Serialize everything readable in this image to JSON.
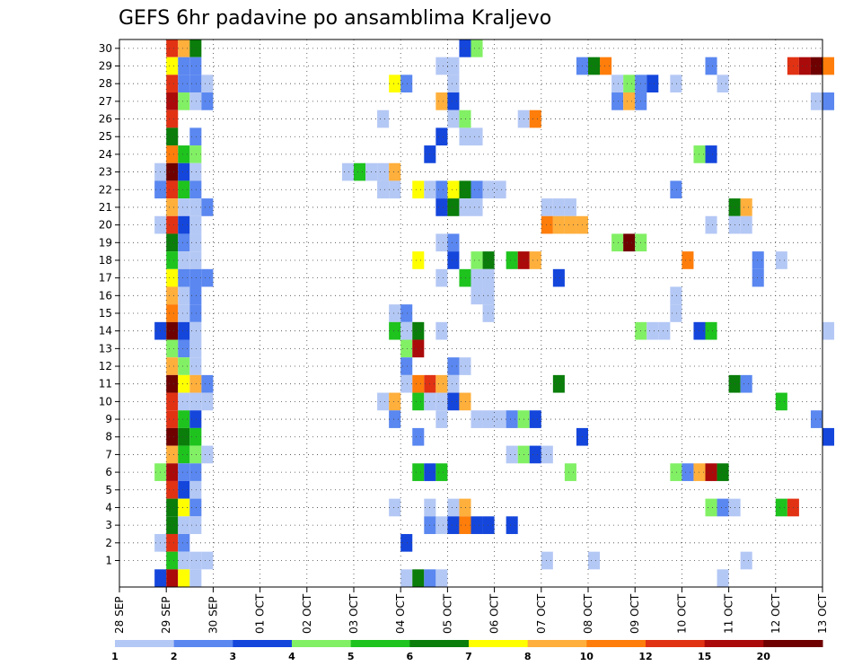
{
  "chart_data": {
    "type": "heatmap",
    "title": "GEFS 6hr padavine po ansamblima Kraljevo",
    "xlabel": "",
    "ylabel": "",
    "x_range": [
      "2019-09-28 00:00",
      "2019-10-13 00:00"
    ],
    "x_ticks": [
      "28 SEP",
      "29 SEP",
      "30 SEP",
      "01 OCT",
      "02 OCT",
      "03 OCT",
      "04 OCT",
      "05 OCT",
      "06 OCT",
      "07 OCT",
      "08 OCT",
      "09 OCT",
      "10 OCT",
      "11 OCT",
      "12 OCT",
      "13 OCT"
    ],
    "y_ticks": [
      1,
      2,
      3,
      4,
      5,
      6,
      7,
      8,
      9,
      10,
      11,
      12,
      13,
      14,
      15,
      16,
      17,
      18,
      19,
      20,
      21,
      22,
      23,
      24,
      25,
      26,
      27,
      28,
      29,
      30
    ],
    "y_range": [
      0,
      30
    ],
    "time_step_hours": 6,
    "grid": true,
    "colorbar": {
      "position": "bottom",
      "labels": [
        "1",
        "2",
        "3",
        "4",
        "5",
        "6",
        "7",
        "8",
        "10",
        "12",
        "15",
        "20"
      ],
      "colors": [
        "#b4c8f5",
        "#5a87f0",
        "#1446dc",
        "#82f064",
        "#1ec31e",
        "#0a7d0a",
        "#ffff00",
        "#ffaf3c",
        "#ff7d0a",
        "#e13214",
        "#aa0a0a",
        "#6e0000"
      ]
    },
    "cells_format": [
      "member",
      "valid_time",
      "color_index"
    ],
    "cells": [
      [
        30,
        "09-29 00",
        9
      ],
      [
        30,
        "09-29 06",
        7
      ],
      [
        30,
        "09-29 12",
        5
      ],
      [
        30,
        "10-05 06",
        2
      ],
      [
        30,
        "10-05 12",
        3
      ],
      [
        29,
        "09-29 00",
        6
      ],
      [
        29,
        "09-29 06",
        1
      ],
      [
        29,
        "09-29 12",
        1
      ],
      [
        29,
        "10-04 18",
        0
      ],
      [
        29,
        "10-05 00",
        0
      ],
      [
        29,
        "10-07 18",
        1
      ],
      [
        29,
        "10-08 00",
        5
      ],
      [
        29,
        "10-08 06",
        8
      ],
      [
        29,
        "10-10 12",
        1
      ],
      [
        29,
        "10-12 06",
        9
      ],
      [
        29,
        "10-12 12",
        10
      ],
      [
        29,
        "10-12 18",
        11
      ],
      [
        29,
        "10-13 00",
        8
      ],
      [
        28,
        "09-29 00",
        9
      ],
      [
        28,
        "09-29 06",
        1
      ],
      [
        28,
        "09-29 12",
        1
      ],
      [
        28,
        "09-29 18",
        0
      ],
      [
        28,
        "10-03 18",
        6
      ],
      [
        28,
        "10-04 00",
        1
      ],
      [
        28,
        "10-05 00",
        0
      ],
      [
        28,
        "10-08 12",
        0
      ],
      [
        28,
        "10-08 18",
        3
      ],
      [
        28,
        "10-09 00",
        1
      ],
      [
        28,
        "10-09 06",
        2
      ],
      [
        28,
        "10-09 18",
        0
      ],
      [
        28,
        "10-10 18",
        0
      ],
      [
        27,
        "09-29 00",
        10
      ],
      [
        27,
        "09-29 06",
        3
      ],
      [
        27,
        "09-29 12",
        0
      ],
      [
        27,
        "09-29 18",
        1
      ],
      [
        27,
        "10-04 18",
        7
      ],
      [
        27,
        "10-05 00",
        2
      ],
      [
        27,
        "10-08 12",
        1
      ],
      [
        27,
        "10-08 18",
        7
      ],
      [
        27,
        "10-09 00",
        1
      ],
      [
        27,
        "10-12 18",
        0
      ],
      [
        27,
        "10-13 00",
        1
      ],
      [
        26,
        "09-29 00",
        9
      ],
      [
        26,
        "10-03 12",
        0
      ],
      [
        26,
        "10-05 00",
        0
      ],
      [
        26,
        "10-05 06",
        3
      ],
      [
        26,
        "10-06 12",
        0
      ],
      [
        26,
        "10-06 18",
        8
      ],
      [
        25,
        "09-29 00",
        5
      ],
      [
        25,
        "09-29 12",
        1
      ],
      [
        25,
        "10-04 18",
        2
      ],
      [
        25,
        "10-05 06",
        0
      ],
      [
        25,
        "10-05 12",
        0
      ],
      [
        24,
        "09-29 00",
        8
      ],
      [
        24,
        "09-29 06",
        4
      ],
      [
        24,
        "09-29 12",
        3
      ],
      [
        24,
        "10-04 12",
        2
      ],
      [
        24,
        "10-10 06",
        3
      ],
      [
        24,
        "10-10 12",
        2
      ],
      [
        23,
        "09-28 18",
        0
      ],
      [
        23,
        "09-29 00",
        11
      ],
      [
        23,
        "09-29 06",
        2
      ],
      [
        23,
        "09-29 12",
        0
      ],
      [
        23,
        "10-02 18",
        0
      ],
      [
        23,
        "10-03 00",
        4
      ],
      [
        23,
        "10-03 06",
        0
      ],
      [
        23,
        "10-03 12",
        0
      ],
      [
        23,
        "10-03 18",
        7
      ],
      [
        22,
        "09-28 18",
        1
      ],
      [
        22,
        "09-29 00",
        9
      ],
      [
        22,
        "09-29 06",
        4
      ],
      [
        22,
        "09-29 12",
        1
      ],
      [
        22,
        "10-03 12",
        0
      ],
      [
        22,
        "10-03 18",
        0
      ],
      [
        22,
        "10-04 06",
        6
      ],
      [
        22,
        "10-04 12",
        0
      ],
      [
        22,
        "10-04 18",
        1
      ],
      [
        22,
        "10-05 00",
        6
      ],
      [
        22,
        "10-05 06",
        5
      ],
      [
        22,
        "10-05 12",
        1
      ],
      [
        22,
        "10-05 18",
        0
      ],
      [
        22,
        "10-06 00",
        0
      ],
      [
        22,
        "10-09 18",
        1
      ],
      [
        21,
        "09-29 00",
        7
      ],
      [
        21,
        "09-29 06",
        0
      ],
      [
        21,
        "09-29 12",
        0
      ],
      [
        21,
        "09-29 18",
        1
      ],
      [
        21,
        "10-04 18",
        2
      ],
      [
        21,
        "10-05 00",
        5
      ],
      [
        21,
        "10-05 06",
        0
      ],
      [
        21,
        "10-05 12",
        0
      ],
      [
        21,
        "10-07 00",
        0
      ],
      [
        21,
        "10-07 06",
        0
      ],
      [
        21,
        "10-07 12",
        0
      ],
      [
        21,
        "10-11 00",
        5
      ],
      [
        21,
        "10-11 06",
        7
      ],
      [
        20,
        "09-28 18",
        0
      ],
      [
        20,
        "09-29 00",
        9
      ],
      [
        20,
        "09-29 06",
        2
      ],
      [
        20,
        "09-29 12",
        0
      ],
      [
        20,
        "10-07 00",
        8
      ],
      [
        20,
        "10-07 06",
        7
      ],
      [
        20,
        "10-07 12",
        7
      ],
      [
        20,
        "10-07 18",
        7
      ],
      [
        20,
        "10-10 12",
        0
      ],
      [
        20,
        "10-11 00",
        0
      ],
      [
        20,
        "10-11 06",
        0
      ],
      [
        19,
        "09-29 00",
        5
      ],
      [
        19,
        "09-29 06",
        1
      ],
      [
        19,
        "09-29 12",
        0
      ],
      [
        19,
        "10-04 18",
        0
      ],
      [
        19,
        "10-05 00",
        1
      ],
      [
        19,
        "10-08 12",
        3
      ],
      [
        19,
        "10-08 18",
        11
      ],
      [
        19,
        "10-09 00",
        3
      ],
      [
        18,
        "09-29 00",
        4
      ],
      [
        18,
        "09-29 06",
        0
      ],
      [
        18,
        "09-29 12",
        0
      ],
      [
        18,
        "10-04 06",
        6
      ],
      [
        18,
        "10-05 00",
        2
      ],
      [
        18,
        "10-05 12",
        3
      ],
      [
        18,
        "10-05 18",
        5
      ],
      [
        18,
        "10-06 06",
        4
      ],
      [
        18,
        "10-06 12",
        10
      ],
      [
        18,
        "10-06 18",
        7
      ],
      [
        18,
        "10-10 00",
        8
      ],
      [
        18,
        "10-11 12",
        1
      ],
      [
        18,
        "10-12 00",
        0
      ],
      [
        17,
        "09-29 00",
        6
      ],
      [
        17,
        "09-29 06",
        1
      ],
      [
        17,
        "09-29 12",
        1
      ],
      [
        17,
        "09-29 18",
        1
      ],
      [
        17,
        "10-04 18",
        0
      ],
      [
        17,
        "10-05 06",
        4
      ],
      [
        17,
        "10-05 12",
        0
      ],
      [
        17,
        "10-05 18",
        0
      ],
      [
        17,
        "10-07 06",
        2
      ],
      [
        17,
        "10-11 12",
        1
      ],
      [
        16,
        "09-29 00",
        7
      ],
      [
        16,
        "09-29 06",
        0
      ],
      [
        16,
        "09-29 12",
        1
      ],
      [
        16,
        "10-05 12",
        0
      ],
      [
        16,
        "10-05 18",
        0
      ],
      [
        16,
        "10-09 18",
        0
      ],
      [
        15,
        "09-29 00",
        8
      ],
      [
        15,
        "09-29 06",
        0
      ],
      [
        15,
        "09-29 12",
        1
      ],
      [
        15,
        "10-03 18",
        0
      ],
      [
        15,
        "10-04 00",
        1
      ],
      [
        15,
        "10-05 18",
        0
      ],
      [
        15,
        "10-09 18",
        0
      ],
      [
        14,
        "09-28 18",
        2
      ],
      [
        14,
        "09-29 00",
        11
      ],
      [
        14,
        "09-29 06",
        2
      ],
      [
        14,
        "09-29 12",
        0
      ],
      [
        14,
        "10-03 18",
        4
      ],
      [
        14,
        "10-04 00",
        0
      ],
      [
        14,
        "10-04 06",
        5
      ],
      [
        14,
        "10-04 18",
        0
      ],
      [
        14,
        "10-09 00",
        3
      ],
      [
        14,
        "10-09 06",
        0
      ],
      [
        14,
        "10-09 12",
        0
      ],
      [
        14,
        "10-10 06",
        2
      ],
      [
        14,
        "10-10 12",
        4
      ],
      [
        14,
        "10-13 00",
        0
      ],
      [
        13,
        "09-29 00",
        3
      ],
      [
        13,
        "09-29 06",
        1
      ],
      [
        13,
        "09-29 12",
        0
      ],
      [
        13,
        "10-04 00",
        3
      ],
      [
        13,
        "10-04 06",
        10
      ],
      [
        12,
        "09-29 00",
        7
      ],
      [
        12,
        "09-29 06",
        3
      ],
      [
        12,
        "09-29 12",
        0
      ],
      [
        12,
        "10-04 00",
        1
      ],
      [
        12,
        "10-05 00",
        1
      ],
      [
        12,
        "10-05 06",
        0
      ],
      [
        11,
        "09-29 00",
        11
      ],
      [
        11,
        "09-29 06",
        6
      ],
      [
        11,
        "09-29 12",
        7
      ],
      [
        11,
        "09-29 18",
        1
      ],
      [
        11,
        "10-04 00",
        0
      ],
      [
        11,
        "10-04 06",
        8
      ],
      [
        11,
        "10-04 12",
        9
      ],
      [
        11,
        "10-04 18",
        7
      ],
      [
        11,
        "10-05 00",
        0
      ],
      [
        11,
        "10-07 06",
        5
      ],
      [
        11,
        "10-11 00",
        5
      ],
      [
        11,
        "10-11 06",
        1
      ],
      [
        10,
        "09-29 00",
        9
      ],
      [
        10,
        "09-29 06",
        0
      ],
      [
        10,
        "09-29 12",
        0
      ],
      [
        10,
        "09-29 18",
        0
      ],
      [
        10,
        "10-03 12",
        0
      ],
      [
        10,
        "10-03 18",
        7
      ],
      [
        10,
        "10-04 06",
        4
      ],
      [
        10,
        "10-04 12",
        0
      ],
      [
        10,
        "10-04 18",
        0
      ],
      [
        10,
        "10-05 00",
        2
      ],
      [
        10,
        "10-05 06",
        7
      ],
      [
        10,
        "10-12 00",
        4
      ],
      [
        9,
        "09-29 00",
        9
      ],
      [
        9,
        "09-29 06",
        4
      ],
      [
        9,
        "09-29 12",
        2
      ],
      [
        9,
        "10-03 18",
        1
      ],
      [
        9,
        "10-04 18",
        0
      ],
      [
        9,
        "10-05 12",
        0
      ],
      [
        9,
        "10-05 18",
        0
      ],
      [
        9,
        "10-06 00",
        0
      ],
      [
        9,
        "10-06 06",
        1
      ],
      [
        9,
        "10-06 12",
        3
      ],
      [
        9,
        "10-06 18",
        2
      ],
      [
        9,
        "10-12 18",
        1
      ],
      [
        8,
        "09-29 00",
        11
      ],
      [
        8,
        "09-29 06",
        5
      ],
      [
        8,
        "09-29 12",
        4
      ],
      [
        8,
        "10-04 06",
        1
      ],
      [
        8,
        "10-07 18",
        2
      ],
      [
        8,
        "10-13 00",
        2
      ],
      [
        7,
        "09-29 00",
        7
      ],
      [
        7,
        "09-29 06",
        4
      ],
      [
        7,
        "09-29 12",
        3
      ],
      [
        7,
        "09-29 18",
        0
      ],
      [
        7,
        "10-06 06",
        0
      ],
      [
        7,
        "10-06 12",
        3
      ],
      [
        7,
        "10-06 18",
        2
      ],
      [
        7,
        "10-07 00",
        0
      ],
      [
        6,
        "09-28 18",
        3
      ],
      [
        6,
        "09-29 00",
        10
      ],
      [
        6,
        "09-29 06",
        1
      ],
      [
        6,
        "09-29 12",
        1
      ],
      [
        6,
        "10-04 06",
        4
      ],
      [
        6,
        "10-04 12",
        2
      ],
      [
        6,
        "10-04 18",
        4
      ],
      [
        6,
        "10-07 12",
        3
      ],
      [
        6,
        "10-09 18",
        3
      ],
      [
        6,
        "10-10 00",
        1
      ],
      [
        6,
        "10-10 06",
        7
      ],
      [
        6,
        "10-10 12",
        10
      ],
      [
        6,
        "10-10 18",
        5
      ],
      [
        5,
        "09-29 00",
        9
      ],
      [
        5,
        "09-29 06",
        2
      ],
      [
        5,
        "09-29 12",
        0
      ],
      [
        4,
        "09-29 00",
        5
      ],
      [
        4,
        "09-29 06",
        6
      ],
      [
        4,
        "09-29 12",
        1
      ],
      [
        4,
        "10-03 18",
        0
      ],
      [
        4,
        "10-04 12",
        0
      ],
      [
        4,
        "10-05 00",
        0
      ],
      [
        4,
        "10-05 06",
        7
      ],
      [
        4,
        "10-10 12",
        3
      ],
      [
        4,
        "10-10 18",
        1
      ],
      [
        4,
        "10-11 00",
        0
      ],
      [
        4,
        "10-12 00",
        4
      ],
      [
        4,
        "10-12 06",
        9
      ],
      [
        3,
        "09-29 00",
        5
      ],
      [
        3,
        "09-29 06",
        0
      ],
      [
        3,
        "09-29 12",
        0
      ],
      [
        3,
        "10-04 12",
        1
      ],
      [
        3,
        "10-04 18",
        0
      ],
      [
        3,
        "10-05 00",
        2
      ],
      [
        3,
        "10-05 06",
        8
      ],
      [
        3,
        "10-05 12",
        2
      ],
      [
        3,
        "10-05 18",
        2
      ],
      [
        3,
        "10-06 06",
        2
      ],
      [
        2,
        "09-28 18",
        0
      ],
      [
        2,
        "09-29 00",
        9
      ],
      [
        2,
        "09-29 06",
        1
      ],
      [
        2,
        "10-04 00",
        2
      ],
      [
        1,
        "09-29 00",
        4
      ],
      [
        1,
        "09-29 06",
        0
      ],
      [
        1,
        "09-29 12",
        0
      ],
      [
        1,
        "09-29 18",
        0
      ],
      [
        1,
        "10-07 00",
        0
      ],
      [
        1,
        "10-08 00",
        0
      ],
      [
        1,
        "10-11 06",
        0
      ],
      [
        0,
        "09-28 18",
        2
      ],
      [
        0,
        "09-29 00",
        10
      ],
      [
        0,
        "09-29 06",
        6
      ],
      [
        0,
        "09-29 12",
        0
      ],
      [
        0,
        "10-04 00",
        0
      ],
      [
        0,
        "10-04 06",
        5
      ],
      [
        0,
        "10-04 12",
        1
      ],
      [
        0,
        "10-04 18",
        0
      ],
      [
        0,
        "10-10 18",
        0
      ]
    ]
  }
}
